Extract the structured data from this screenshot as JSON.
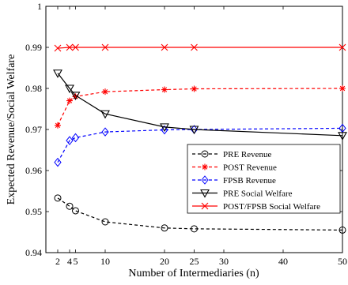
{
  "chart_data": {
    "type": "line",
    "xlabel": "Number of Intermediaries (n)",
    "ylabel": "Expected Revenue/Social Welfare",
    "xlim": [
      0,
      50
    ],
    "ylim": [
      0.94,
      1.0
    ],
    "xticks": [
      2,
      4,
      5,
      10,
      20,
      25,
      30,
      40,
      50
    ],
    "yticks": [
      0.94,
      0.95,
      0.96,
      0.97,
      0.98,
      0.99,
      1.0
    ],
    "ytick_labels": [
      "0.94",
      "0.95",
      "0.96",
      "0.97",
      "0.98",
      "0.99",
      "1"
    ],
    "grid": false,
    "legend_position": "center-right",
    "series": [
      {
        "name": "PRE Revenue",
        "color": "#000000",
        "line_style": "dashed",
        "marker": "circle",
        "x": [
          2,
          4,
          5,
          10,
          20,
          25,
          50
        ],
        "y": [
          0.9533,
          0.9513,
          0.9502,
          0.9475,
          0.946,
          0.9458,
          0.9455
        ]
      },
      {
        "name": "POST Revenue",
        "color": "#ff0000",
        "line_style": "dashed",
        "marker": "asterisk",
        "x": [
          2,
          4,
          5,
          10,
          20,
          25,
          50
        ],
        "y": [
          0.971,
          0.977,
          0.978,
          0.9792,
          0.9797,
          0.9799,
          0.98
        ]
      },
      {
        "name": "FPSB Revenue",
        "color": "#0000ff",
        "line_style": "dashed",
        "marker": "diamond",
        "x": [
          2,
          4,
          5,
          10,
          20,
          25,
          50
        ],
        "y": [
          0.962,
          0.9673,
          0.968,
          0.9694,
          0.9699,
          0.97,
          0.9703
        ]
      },
      {
        "name": "PRE Social Welfare",
        "color": "#000000",
        "line_style": "solid",
        "marker": "triangle-down",
        "x": [
          2,
          4,
          5,
          10,
          20,
          25,
          50
        ],
        "y": [
          0.9837,
          0.98,
          0.9783,
          0.9738,
          0.9706,
          0.97,
          0.9685
        ]
      },
      {
        "name": "POST/FPSB Social Welfare",
        "color": "#ff0000",
        "line_style": "solid",
        "marker": "x",
        "x": [
          2,
          4,
          5,
          10,
          20,
          25,
          50
        ],
        "y": [
          0.9898,
          0.99,
          0.99,
          0.99,
          0.99,
          0.99,
          0.99
        ]
      }
    ]
  }
}
